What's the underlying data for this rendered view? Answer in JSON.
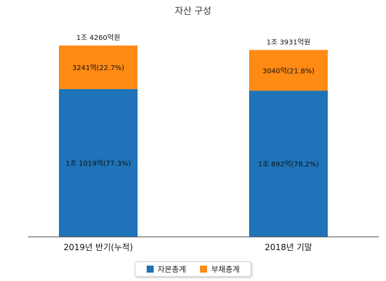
{
  "chart_data": {
    "type": "bar",
    "stacked": true,
    "title": "자산 구성",
    "categories": [
      "2019년 반기(누적)",
      "2018년 기말"
    ],
    "totals": [
      "1조 4260억원",
      "1조 3931억원"
    ],
    "total_values": [
      14260,
      13931
    ],
    "unit": "억원",
    "series": [
      {
        "name": "자본총계",
        "color": "#1f73b8",
        "values": [
          11019,
          10892
        ],
        "labels": [
          "1조 1019억(77.3%)",
          "1조 892억(78.2%)"
        ]
      },
      {
        "name": "부채총계",
        "color": "#ff8a14",
        "values": [
          3241,
          3040
        ],
        "labels": [
          "3241억(22.7%)",
          "3040억(21.8%)"
        ]
      }
    ],
    "legend_position": "bottom",
    "grid": false
  }
}
